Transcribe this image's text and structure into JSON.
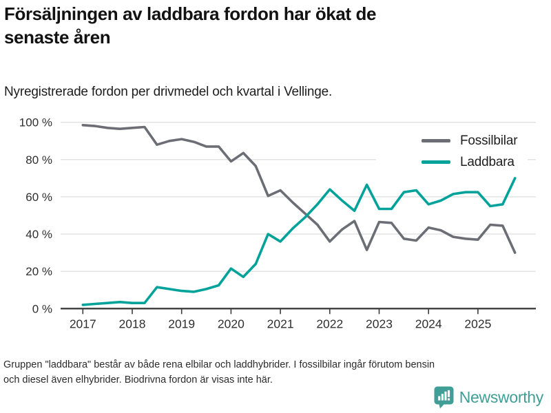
{
  "title": "Försäljningen av laddbara fordon har ökat de\nsenaste åren",
  "subtitle": "Nyregistrerade fordon per drivmedel och kvartal i Vellinge.",
  "footnote": "Gruppen \"laddbara\" består av både rena elbilar och laddhybrider. I fossilbilar ingår förutom bensin\noch diesel även elhybrider. Biodrivna fordon är visas inte här.",
  "legend": {
    "items": [
      {
        "label": "Fossilbilar",
        "color": "#6d6d75"
      },
      {
        "label": "Laddbara",
        "color": "#00a29a"
      }
    ]
  },
  "logo": {
    "text": "Newsworthy",
    "color": "#3f9f97"
  },
  "chart_data": {
    "type": "line",
    "title": "Försäljningen av laddbara fordon har ökat de senaste åren",
    "subtitle": "Nyregistrerade fordon per drivmedel och kvartal i Vellinge.",
    "unit": "%",
    "ylim": [
      0,
      100
    ],
    "grid": "horizontal",
    "legend_position": "top-right",
    "y_ticks": [
      0,
      20,
      40,
      60,
      80,
      100
    ],
    "y_tick_labels": [
      "0 %",
      "20 %",
      "40 %",
      "60 %",
      "80 %",
      "100 %"
    ],
    "x_tick_labels": [
      "2017",
      "2018",
      "2019",
      "2020",
      "2021",
      "2022",
      "2023",
      "2024",
      "2025"
    ],
    "x": [
      "2017 Q1",
      "2017 Q2",
      "2017 Q3",
      "2017 Q4",
      "2018 Q1",
      "2018 Q2",
      "2018 Q3",
      "2018 Q4",
      "2019 Q1",
      "2019 Q2",
      "2019 Q3",
      "2019 Q4",
      "2020 Q1",
      "2020 Q2",
      "2020 Q3",
      "2020 Q4",
      "2021 Q1",
      "2021 Q2",
      "2021 Q3",
      "2021 Q4",
      "2022 Q1",
      "2022 Q2",
      "2022 Q3",
      "2022 Q4",
      "2023 Q1",
      "2023 Q2",
      "2023 Q3",
      "2023 Q4",
      "2024 Q1",
      "2024 Q2",
      "2024 Q3",
      "2024 Q4",
      "2025 Q1",
      "2025 Q2",
      "2025 Q3",
      "2025 Q4"
    ],
    "series": [
      {
        "name": "Fossilbilar",
        "color": "#6d6d75",
        "values": [
          98.5,
          98,
          97,
          96.5,
          97,
          97.5,
          88,
          90,
          91,
          89.5,
          87,
          87,
          79,
          83.5,
          76.5,
          60.5,
          63.5,
          57,
          51,
          45,
          36,
          42.5,
          47,
          31.5,
          46.5,
          46,
          37.5,
          36.5,
          43.5,
          42,
          38.5,
          37.5,
          37,
          45,
          44.5,
          30
        ]
      },
      {
        "name": "Laddbara",
        "color": "#00a29a",
        "values": [
          2,
          2.5,
          3,
          3.5,
          3,
          3,
          11.5,
          10.5,
          9.5,
          9,
          10.5,
          12.5,
          21.5,
          17,
          24,
          40,
          36,
          43,
          49,
          56,
          64,
          58,
          52.5,
          66.5,
          53.5,
          53.5,
          62.5,
          63.5,
          56,
          58,
          61.5,
          62.5,
          62.5,
          55,
          56,
          70
        ]
      }
    ]
  }
}
